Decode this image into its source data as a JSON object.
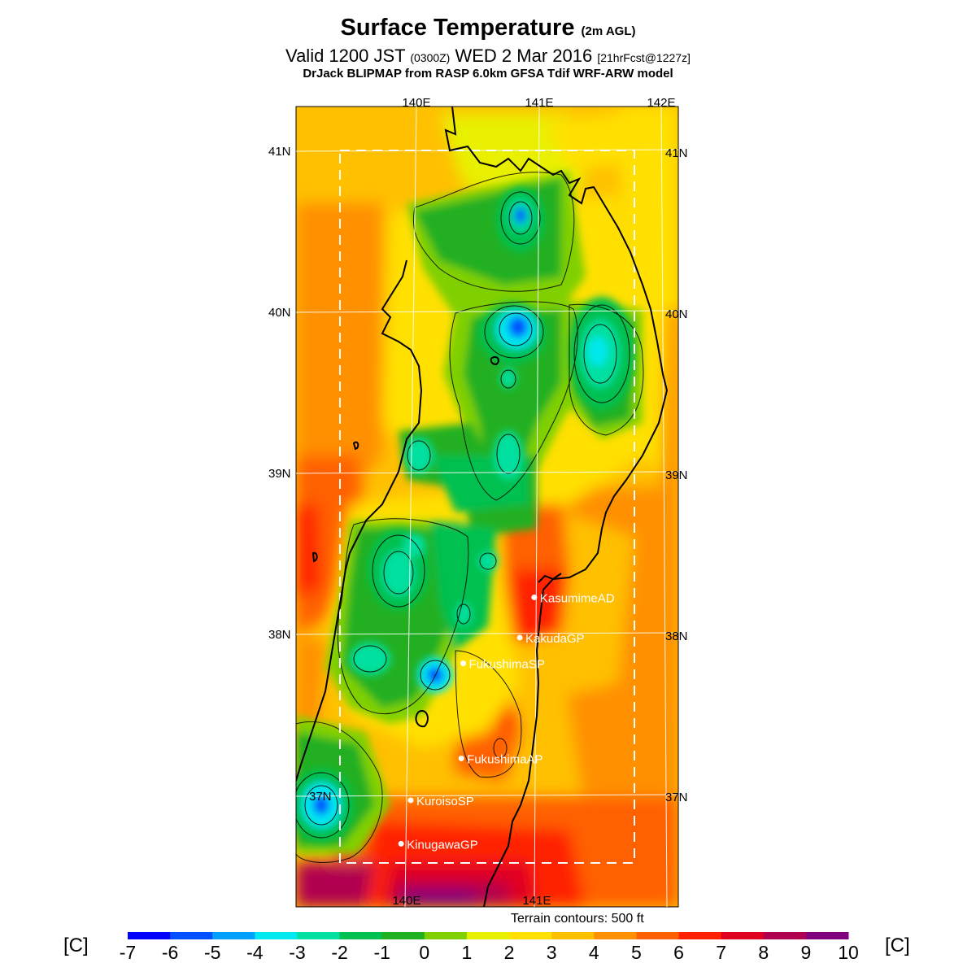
{
  "title": {
    "main": "Surface Temperature",
    "suffix": "(2m AGL)"
  },
  "valid": {
    "prefix": "Valid 1200 JST",
    "utc": "(0300Z)",
    "date": "WED 2 Mar 2016",
    "forecast": "[21hrFcst@1227z]"
  },
  "model": "DrJack BLIPMAP from RASP 6.0km GFSA Tdif WRF-ARW model",
  "map": {
    "lon_labels_top": [
      "140E",
      "141E",
      "142E"
    ],
    "lon_labels_bottom": [
      "140E",
      "141E"
    ],
    "lat_labels_left": [
      "41N",
      "40N",
      "39N",
      "38N",
      "37N"
    ],
    "lat_labels_right": [
      "41N",
      "40N",
      "39N",
      "38N",
      "37N"
    ],
    "stations": [
      {
        "name": "KasumimeAD",
        "lon": 140.98,
        "lat": 38.23
      },
      {
        "name": "KakudaGP",
        "lon": 140.87,
        "lat": 37.98
      },
      {
        "name": "FukushimaSP",
        "lon": 140.42,
        "lat": 37.82
      },
      {
        "name": "FukushimaAP",
        "lon": 140.42,
        "lat": 37.23
      },
      {
        "name": "KuroisoSP",
        "lon": 140.02,
        "lat": 36.97
      },
      {
        "name": "KinugawaGP",
        "lon": 139.95,
        "lat": 36.7
      }
    ]
  },
  "terrain_note": "Terrain contours: 500 ft",
  "colorbar": {
    "unit": "[C]",
    "labels": [
      "-7",
      "-6",
      "-5",
      "-4",
      "-3",
      "-2",
      "-1",
      "0",
      "1",
      "2",
      "3",
      "4",
      "5",
      "6",
      "7",
      "8",
      "9",
      "10"
    ],
    "colors": [
      "#0000ff",
      "#0050ff",
      "#00a0ff",
      "#00e8f0",
      "#00e0a0",
      "#00c050",
      "#20b020",
      "#80d000",
      "#e8f000",
      "#ffe000",
      "#ffc000",
      "#ff9000",
      "#ff6000",
      "#ff2000",
      "#e00020",
      "#b00050",
      "#800080"
    ]
  }
}
